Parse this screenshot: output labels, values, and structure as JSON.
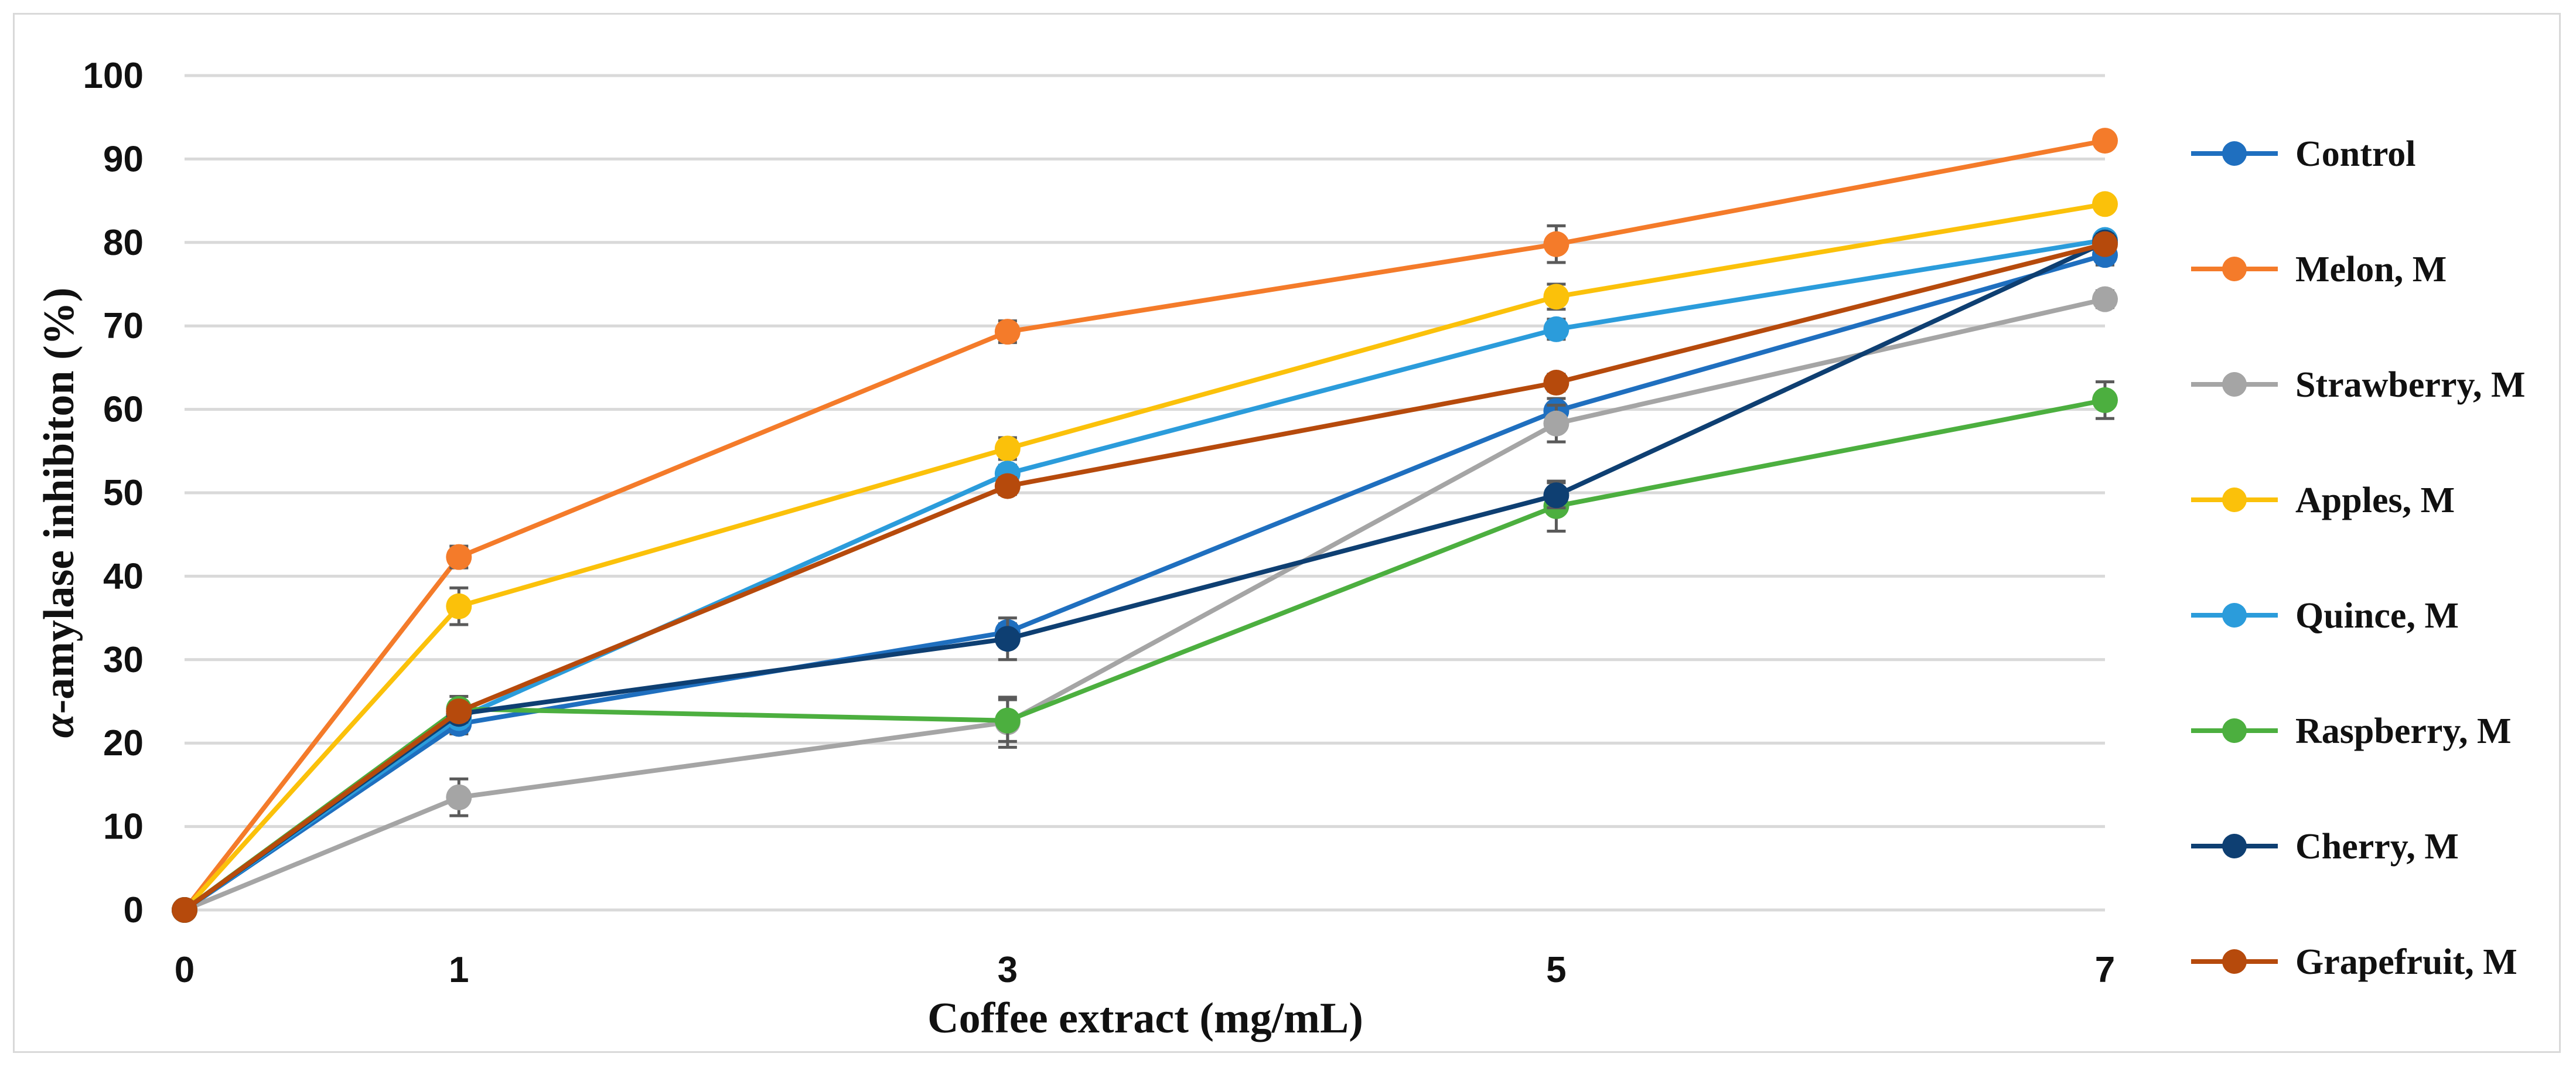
{
  "chart_data": {
    "type": "line",
    "title": "",
    "xlabel": "Coffee extract (mg/mL)",
    "ylabel_symbol": "α",
    "ylabel": "-amylase inhibiton (%)",
    "x": [
      "0",
      "1",
      "3",
      "5",
      "7"
    ],
    "ylim": [
      0,
      100
    ],
    "yticks": [
      "0",
      "10",
      "20",
      "30",
      "40",
      "50",
      "60",
      "70",
      "80",
      "90",
      "100"
    ],
    "grid": true,
    "legend_position": "right",
    "series": [
      {
        "name": "Control",
        "color": "#1f6fbf",
        "values": [
          0,
          22.3,
          33.3,
          59.8,
          78.5
        ],
        "errors": [
          0,
          1.2,
          1.0,
          1.5,
          1.2
        ]
      },
      {
        "name": "Melon, M",
        "color": "#f47b2a",
        "values": [
          0,
          42.3,
          69.3,
          79.8,
          92.2
        ],
        "errors": [
          0,
          1.3,
          1.3,
          2.2,
          0.8
        ]
      },
      {
        "name": "Strawberry, M",
        "color": "#a5a5a5",
        "values": [
          0,
          13.5,
          22.5,
          58.3,
          73.2
        ],
        "errors": [
          0,
          2.2,
          3.0,
          2.2,
          1.0
        ]
      },
      {
        "name": "Apples, M",
        "color": "#fbc10a",
        "values": [
          0,
          36.4,
          55.3,
          73.5,
          84.6
        ],
        "errors": [
          0,
          2.2,
          1.3,
          1.5,
          0.8
        ]
      },
      {
        "name": "Quince, M",
        "color": "#2b9cdb",
        "values": [
          0,
          23.0,
          52.3,
          69.6,
          80.3
        ],
        "errors": [
          0,
          1.0,
          1.0,
          1.2,
          0.8
        ]
      },
      {
        "name": "Raspberry, M",
        "color": "#4caf3f",
        "values": [
          0,
          24.1,
          22.7,
          48.4,
          61.1
        ],
        "errors": [
          0,
          1.5,
          2.5,
          3.0,
          2.2
        ]
      },
      {
        "name": "Cherry, M",
        "color": "#0e3f72",
        "values": [
          0,
          23.5,
          32.5,
          49.7,
          80.0
        ],
        "errors": [
          0,
          1.0,
          2.5,
          1.5,
          1.0
        ]
      },
      {
        "name": "Grapefruit, M",
        "color": "#b64a0c",
        "values": [
          0,
          23.8,
          50.8,
          63.2,
          79.8
        ],
        "errors": [
          0,
          1.0,
          1.0,
          1.0,
          1.0
        ]
      }
    ]
  }
}
